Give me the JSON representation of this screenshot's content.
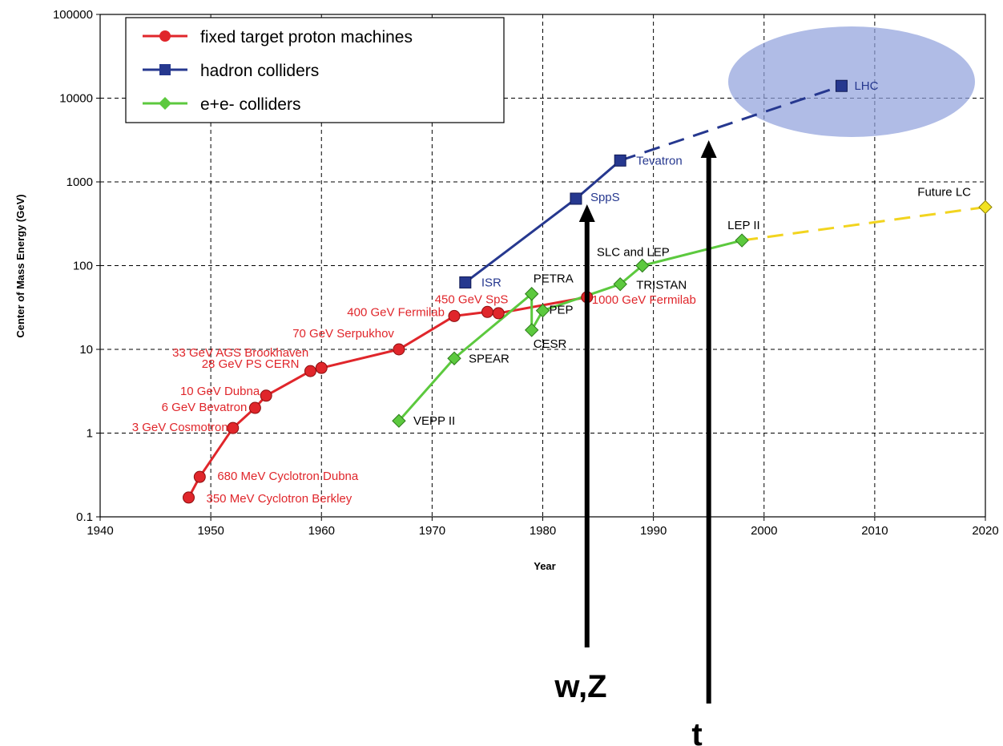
{
  "chart_data": {
    "type": "line",
    "title": "",
    "xlabel": "Year",
    "ylabel": "Center of Mass Energy (GeV)",
    "xlim": [
      1940,
      2020
    ],
    "ylim": [
      0.1,
      100000
    ],
    "yscale": "log",
    "grid": true,
    "legend_position": "top-left",
    "x_ticks": [
      "1940",
      "1950",
      "1960",
      "1970",
      "1980",
      "1990",
      "2000",
      "2010",
      "2020"
    ],
    "y_ticks": [
      "0.1",
      "1",
      "10",
      "100",
      "1000",
      "10000",
      "100000"
    ],
    "series": [
      {
        "name": "fixed target proton machines",
        "color": "#e0262b",
        "marker": "circle",
        "points": [
          {
            "x": 1948,
            "y": 0.17,
            "label": "350 MeV Cyclotron Berkley"
          },
          {
            "x": 1949,
            "y": 0.3,
            "label": "680 MeV Cyclotron Dubna"
          },
          {
            "x": 1952,
            "y": 1.15,
            "label": "3 GeV Cosmotron"
          },
          {
            "x": 1954,
            "y": 2.0,
            "label": "6 GeV Bevatron"
          },
          {
            "x": 1955,
            "y": 2.8,
            "label": "10 GeV Dubna"
          },
          {
            "x": 1959,
            "y": 5.5,
            "label": "28 GeV PS CERN"
          },
          {
            "x": 1960,
            "y": 6.0,
            "label": "33 GeV AGS Brookhaven"
          },
          {
            "x": 1967,
            "y": 10.0,
            "label": "70 GeV Serpukhov"
          },
          {
            "x": 1972,
            "y": 25.0,
            "label": "400 GeV Fermilab"
          },
          {
            "x": 1975,
            "y": 28.0,
            "label": "450 GeV SpS"
          },
          {
            "x": 1976,
            "y": 27.0,
            "label": ""
          },
          {
            "x": 1984,
            "y": 42.0,
            "label": "1000 GeV Fermilab"
          }
        ]
      },
      {
        "name": "hadron colliders",
        "color": "#26388f",
        "marker": "square",
        "points": [
          {
            "x": 1973,
            "y": 63.0,
            "label": "ISR"
          },
          {
            "x": 1983,
            "y": 630.0,
            "label": "SppS"
          },
          {
            "x": 1987,
            "y": 1800.0,
            "label": "Tevatron"
          },
          {
            "x": 2007,
            "y": 14000.0,
            "label": "LHC"
          }
        ]
      },
      {
        "name": "e+e- colliders",
        "color": "#5cc93e",
        "marker": "diamond",
        "points": [
          {
            "x": 1967,
            "y": 1.4,
            "label": "VEPP II"
          },
          {
            "x": 1972,
            "y": 7.8,
            "label": "SPEAR"
          },
          {
            "x": 1979,
            "y": 46.0,
            "label": "PETRA"
          },
          {
            "x": 1979,
            "y": 17.0,
            "label": "CESR"
          },
          {
            "x": 1980,
            "y": 29.0,
            "label": "PEP"
          },
          {
            "x": 1987,
            "y": 60.0,
            "label": "TRISTAN"
          },
          {
            "x": 1989,
            "y": 100.0,
            "label": "SLC and LEP"
          },
          {
            "x": 1998,
            "y": 200.0,
            "label": "LEP II"
          },
          {
            "x": 2020,
            "y": 500.0,
            "label": "Future LC"
          }
        ]
      }
    ],
    "annotations": [
      {
        "text": "w,Z",
        "x": 1984,
        "arrow_to_y": 630
      },
      {
        "text": "t",
        "x": 1995,
        "arrow_to_y": 2500
      }
    ]
  }
}
